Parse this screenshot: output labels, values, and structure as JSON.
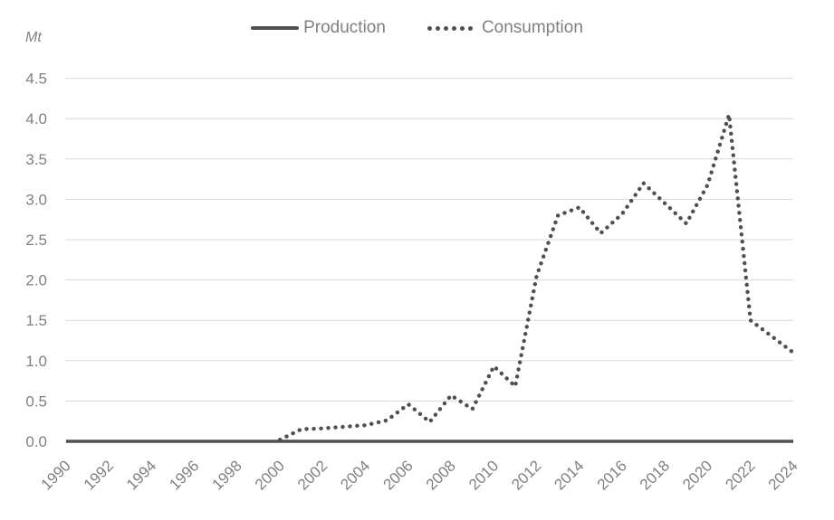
{
  "legend": {
    "items": [
      {
        "label": "Production",
        "marker": "solid-line-swatch"
      },
      {
        "label": "Consumption",
        "marker": "dotted-line-swatch"
      }
    ]
  },
  "colors": {
    "line": "#4f4f4f",
    "grid": "#d9d9d9",
    "text": "#808080"
  },
  "chart_data": {
    "type": "line",
    "title": "",
    "unit_label": "Mt",
    "xlabel": "",
    "ylabel": "Mt",
    "xlim": [
      1990,
      2024
    ],
    "ylim": [
      0,
      4.5
    ],
    "grid": "horizontal",
    "legend_position": "top-center",
    "y_ticks": [
      "0.0",
      "0.5",
      "1.0",
      "1.5",
      "2.0",
      "2.5",
      "3.0",
      "3.5",
      "4.0",
      "4.5"
    ],
    "x_tick_labels": [
      "1990",
      "1992",
      "1994",
      "1996",
      "1998",
      "2000",
      "2002",
      "2004",
      "2006",
      "2008",
      "2010",
      "2012",
      "2014",
      "2016",
      "2018",
      "2020",
      "2022",
      "2024"
    ],
    "series": [
      {
        "name": "Production",
        "line_style": "solid",
        "color": "#4f4f4f",
        "points": [
          [
            1990,
            0
          ],
          [
            1991,
            0
          ],
          [
            1992,
            0
          ],
          [
            1993,
            0
          ],
          [
            1994,
            0
          ],
          [
            1995,
            0
          ],
          [
            1996,
            0
          ],
          [
            1997,
            0
          ],
          [
            1998,
            0
          ],
          [
            1999,
            0
          ],
          [
            2000,
            0
          ],
          [
            2001,
            0
          ],
          [
            2002,
            0
          ],
          [
            2003,
            0
          ],
          [
            2004,
            0
          ],
          [
            2005,
            0
          ],
          [
            2006,
            0
          ],
          [
            2007,
            0
          ],
          [
            2008,
            0
          ],
          [
            2009,
            0
          ],
          [
            2010,
            0
          ],
          [
            2011,
            0
          ],
          [
            2012,
            0
          ],
          [
            2013,
            0
          ],
          [
            2014,
            0
          ],
          [
            2015,
            0
          ],
          [
            2016,
            0
          ],
          [
            2017,
            0
          ],
          [
            2018,
            0
          ],
          [
            2019,
            0
          ],
          [
            2020,
            0
          ],
          [
            2021,
            0
          ],
          [
            2022,
            0
          ],
          [
            2023,
            0
          ],
          [
            2024,
            0
          ]
        ]
      },
      {
        "name": "Consumption",
        "line_style": "dotted",
        "color": "#4f4f4f",
        "points": [
          [
            2000,
            0.02
          ],
          [
            2001,
            0.15
          ],
          [
            2002,
            0.16
          ],
          [
            2003,
            0.18
          ],
          [
            2004,
            0.2
          ],
          [
            2005,
            0.26
          ],
          [
            2006,
            0.46
          ],
          [
            2007,
            0.24
          ],
          [
            2008,
            0.57
          ],
          [
            2009,
            0.4
          ],
          [
            2010,
            0.93
          ],
          [
            2011,
            0.68
          ],
          [
            2012,
            2.05
          ],
          [
            2013,
            2.8
          ],
          [
            2014,
            2.9
          ],
          [
            2015,
            2.58
          ],
          [
            2016,
            2.82
          ],
          [
            2017,
            3.2
          ],
          [
            2018,
            2.95
          ],
          [
            2019,
            2.7
          ],
          [
            2020,
            3.18
          ],
          [
            2021,
            4.05
          ],
          [
            2022,
            1.5
          ],
          [
            2023,
            1.3
          ],
          [
            2024,
            1.1
          ]
        ]
      }
    ]
  }
}
